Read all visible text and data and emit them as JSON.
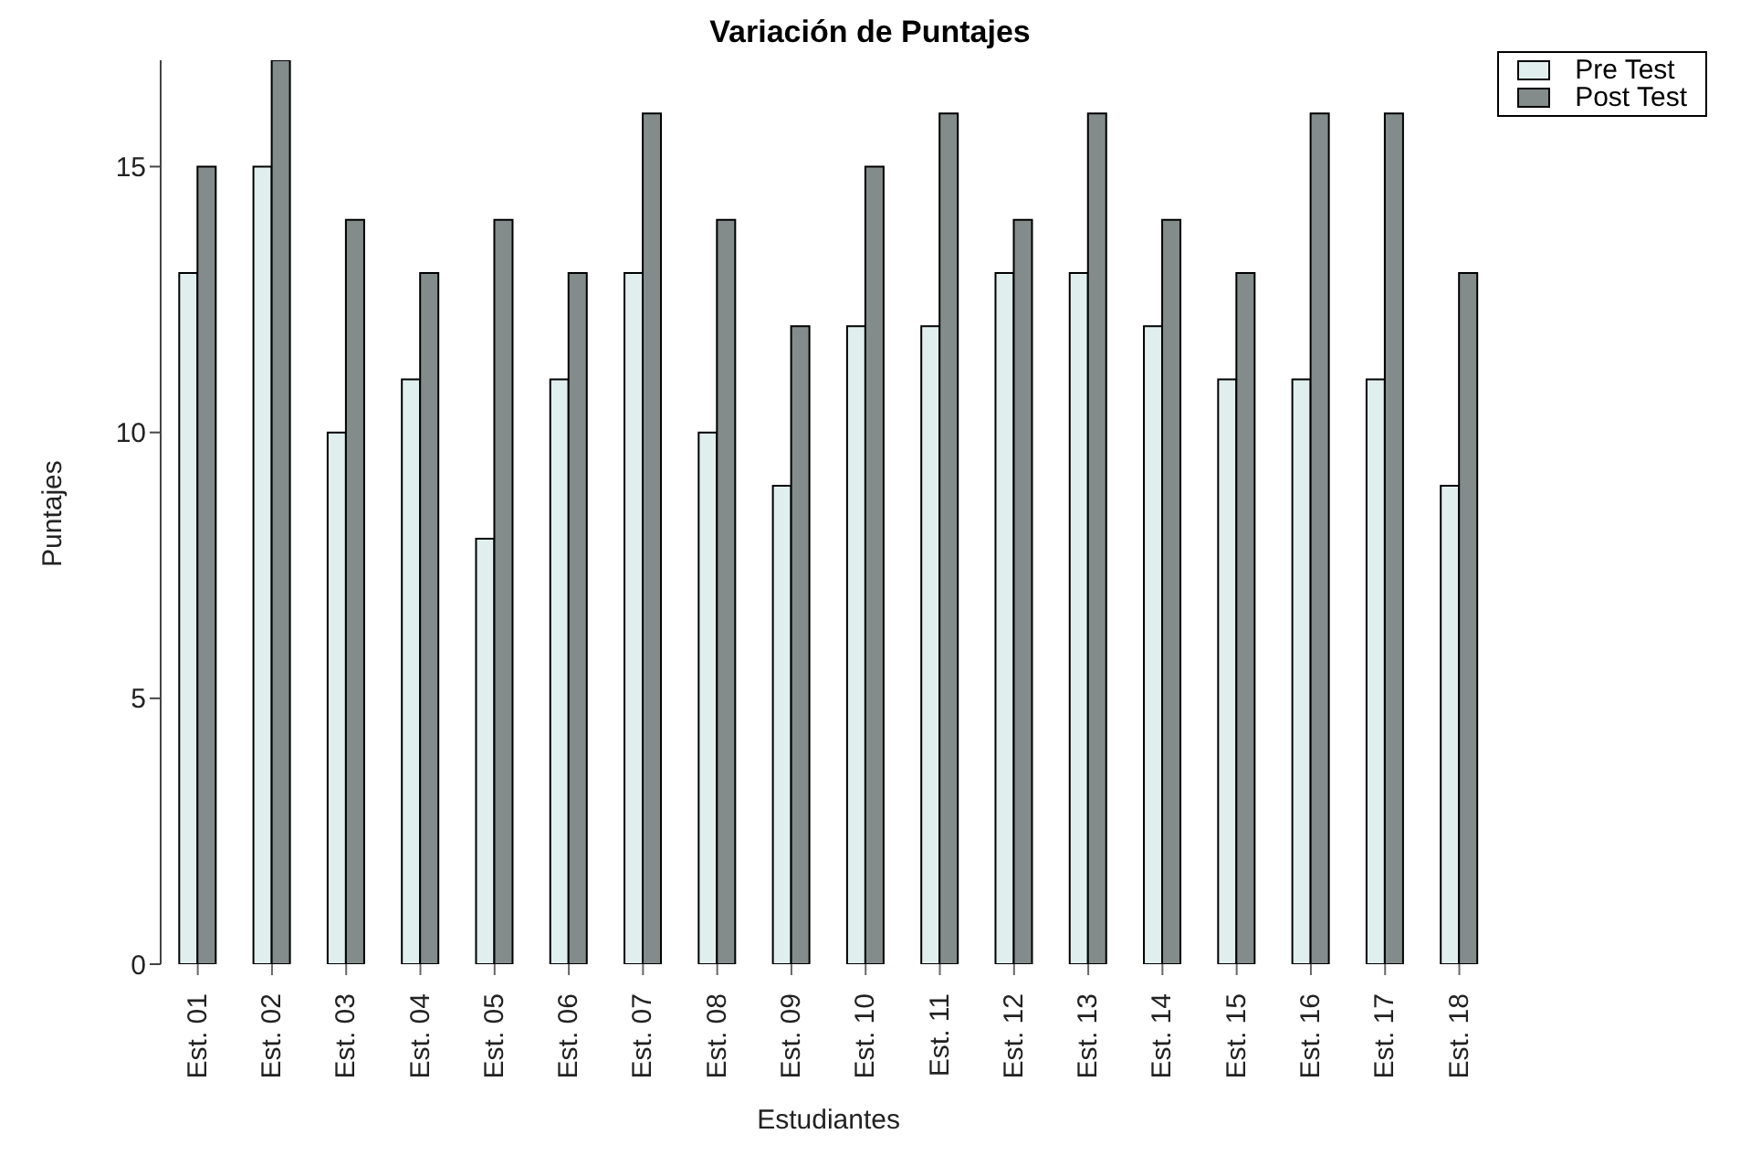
{
  "chart_data": {
    "type": "bar",
    "title": "Variación de Puntajes",
    "xlabel": "Estudiantes",
    "ylabel": "Puntajes",
    "categories": [
      "Est. 01",
      "Est. 02",
      "Est. 03",
      "Est. 04",
      "Est. 05",
      "Est. 06",
      "Est. 07",
      "Est. 08",
      "Est. 09",
      "Est. 10",
      "Est. 11",
      "Est. 12",
      "Est. 13",
      "Est. 14",
      "Est. 15",
      "Est. 16",
      "Est. 17",
      "Est. 18"
    ],
    "series": [
      {
        "name": "Pre Test",
        "color": "#e0eeee",
        "values": [
          13,
          15,
          10,
          11,
          8,
          11,
          13,
          10,
          9,
          12,
          12,
          13,
          13,
          12,
          11,
          11,
          11,
          9
        ]
      },
      {
        "name": "Post Test",
        "color": "#838b8b",
        "values": [
          15,
          17,
          14,
          13,
          14,
          13,
          16,
          14,
          12,
          15,
          16,
          14,
          16,
          14,
          13,
          16,
          16,
          13
        ]
      }
    ],
    "ylim": [
      0,
      17
    ],
    "yticks": [
      0,
      5,
      10,
      15
    ],
    "legend": "top right"
  }
}
